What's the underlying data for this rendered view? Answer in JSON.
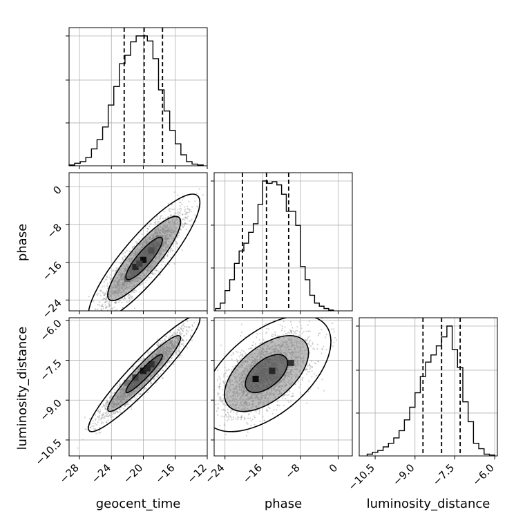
{
  "chart_data": {
    "type": "corner",
    "parameters": [
      "geocent_time",
      "phase",
      "luminosity_distance"
    ],
    "axis_labels": {
      "x": [
        "geocent_time",
        "phase",
        "luminosity_distance"
      ],
      "y": [
        "phase",
        "luminosity_distance"
      ]
    },
    "ranges": {
      "geocent_time": [
        -29.3,
        -12.0
      ],
      "phase": [
        -26.3,
        3.0
      ],
      "luminosity_distance": [
        -11.1,
        -5.9
      ]
    },
    "ticks": {
      "geocent_time": [
        -28,
        -24,
        -20,
        -16,
        -12
      ],
      "phase": [
        -24,
        -16,
        -8,
        0
      ],
      "luminosity_distance": [
        -10.5,
        -9.0,
        -7.5,
        -6.0
      ]
    },
    "tick_labels": {
      "geocent_time": [
        "−28",
        "−24",
        "−20",
        "−16",
        "−12"
      ],
      "phase": [
        "−24",
        "−16",
        "−8",
        "0"
      ],
      "luminosity_distance": [
        "−10.5",
        "−9.0",
        "−7.5",
        "−6.0"
      ]
    },
    "quantiles": {
      "geocent_time": [
        -22.4,
        -19.9,
        -17.6
      ],
      "phase": [
        -20.3,
        -15.2,
        -10.5
      ],
      "luminosity_distance": [
        -8.7,
        -8.0,
        -7.3
      ]
    },
    "histograms": {
      "geocent_time": {
        "edges": [
          -29.3,
          -28.6,
          -27.9,
          -27.2,
          -26.5,
          -25.8,
          -25.1,
          -24.4,
          -23.7,
          -23.0,
          -22.3,
          -21.6,
          -20.9,
          -20.2,
          -19.5,
          -18.8,
          -18.1,
          -17.4,
          -16.7,
          -16.0,
          -15.3,
          -14.6,
          -13.9,
          -13.2,
          -12.5
        ],
        "counts": [
          1,
          3,
          5,
          10,
          20,
          31,
          46,
          72,
          94,
          121,
          131,
          147,
          154,
          154,
          148,
          127,
          90,
          65,
          42,
          26,
          13,
          5,
          2,
          1
        ]
      },
      "phase": {
        "edges": [
          -26.0,
          -25.0,
          -24.0,
          -23.0,
          -22.0,
          -21.0,
          -20.0,
          -19.0,
          -18.0,
          -17.0,
          -16.0,
          -15.0,
          -14.0,
          -13.0,
          -12.0,
          -11.0,
          -10.0,
          -9.0,
          -8.0,
          -7.0,
          -6.0,
          -5.0,
          -4.0,
          -3.0,
          -2.0,
          -1.0
        ],
        "counts": [
          3,
          10,
          26,
          40,
          61,
          77,
          87,
          101,
          112,
          137,
          167,
          164,
          166,
          162,
          150,
          128,
          128,
          110,
          57,
          40,
          20,
          10,
          6,
          3,
          1
        ]
      },
      "luminosity_distance": {
        "edges": [
          -10.8,
          -10.6,
          -10.4,
          -10.2,
          -10.0,
          -9.8,
          -9.6,
          -9.4,
          -9.2,
          -9.0,
          -8.8,
          -8.6,
          -8.4,
          -8.2,
          -8.0,
          -7.8,
          -7.6,
          -7.4,
          -7.2,
          -7.0,
          -6.8,
          -6.6,
          -6.4,
          -6.2,
          -6.0
        ],
        "counts": [
          2,
          4,
          6,
          10,
          14,
          20,
          28,
          40,
          54,
          70,
          88,
          104,
          112,
          122,
          132,
          144,
          118,
          98,
          60,
          38,
          14,
          8,
          2,
          1
        ]
      }
    },
    "joint": {
      "geocent_time__phase": {
        "x": "geocent_time",
        "y": "phase",
        "mean": [
          -19.9,
          -15.2
        ],
        "sigma": [
          2.3,
          4.5
        ],
        "rho": 0.87,
        "n_points": 3000,
        "contour_levels": [
          0.39,
          0.86,
          0.99
        ],
        "high_density_cells": [
          [
            -20.0,
            -15.5,
            0.95
          ],
          [
            -21.0,
            -17.0,
            0.85
          ],
          [
            -19.0,
            -13.5,
            0.7
          ],
          [
            -18.0,
            -11.0,
            0.55
          ],
          [
            -22.0,
            -19.5,
            0.6
          ],
          [
            -20.5,
            -16.3,
            0.75
          ]
        ]
      },
      "geocent_time__luminosity_distance": {
        "x": "geocent_time",
        "y": "luminosity_distance",
        "mean": [
          -19.9,
          -8.0
        ],
        "sigma": [
          2.3,
          0.72
        ],
        "rho": 0.94,
        "n_points": 3000,
        "contour_levels": [
          0.39,
          0.86,
          0.99
        ],
        "high_density_cells": [
          [
            -20.0,
            -7.9,
            0.9
          ],
          [
            -19.0,
            -7.65,
            0.8
          ],
          [
            -21.0,
            -8.15,
            0.75
          ],
          [
            -18.0,
            -7.4,
            0.6
          ],
          [
            -22.0,
            -8.35,
            0.55
          ],
          [
            -19.5,
            -7.8,
            0.85
          ]
        ]
      },
      "phase__luminosity_distance": {
        "x": "phase",
        "y": "luminosity_distance",
        "mean": [
          -15.2,
          -8.0
        ],
        "sigma": [
          4.5,
          0.72
        ],
        "rho": 0.55,
        "n_points": 3000,
        "contour_levels": [
          0.39,
          0.86,
          0.99
        ],
        "high_density_cells": [
          [
            -17.5,
            -8.2,
            0.95
          ],
          [
            -14.0,
            -7.9,
            0.85
          ],
          [
            -10.0,
            -7.6,
            0.8
          ],
          [
            -16.0,
            -8.0,
            0.6
          ],
          [
            -12.0,
            -7.8,
            0.55
          ]
        ]
      }
    },
    "grid": true,
    "color": "#000000",
    "point_color": "#7f7f7f"
  }
}
